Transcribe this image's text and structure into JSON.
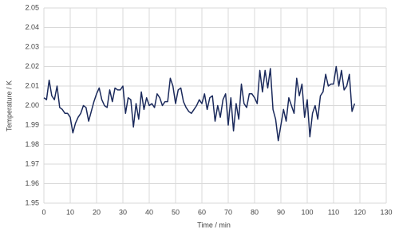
{
  "chart_data": {
    "type": "line",
    "x_label": "Time / min",
    "y_label": "Temperature / K",
    "xlim": [
      0,
      130
    ],
    "xticks": [
      0,
      10,
      20,
      30,
      40,
      50,
      60,
      70,
      80,
      90,
      100,
      110,
      120,
      130
    ],
    "ylim": [
      1.95,
      2.05
    ],
    "yticks": [
      1.95,
      1.96,
      1.97,
      1.98,
      1.99,
      {
        "value": 2,
        "label": "2.00"
      },
      2.01,
      2.02,
      2.03,
      2.04,
      2.05
    ],
    "grid": true,
    "x": [
      0,
      1,
      2,
      3,
      4,
      5,
      6,
      7,
      8,
      9,
      10,
      11,
      12,
      13,
      14,
      15,
      16,
      17,
      18,
      19,
      20,
      21,
      22,
      23,
      24,
      25,
      26,
      27,
      28,
      29,
      30,
      31,
      32,
      33,
      34,
      35,
      36,
      37,
      38,
      39,
      40,
      41,
      42,
      43,
      44,
      45,
      46,
      47,
      48,
      49,
      50,
      51,
      52,
      53,
      54,
      55,
      56,
      57,
      58,
      59,
      60,
      61,
      62,
      63,
      64,
      65,
      66,
      67,
      68,
      69,
      70,
      71,
      72,
      73,
      74,
      75,
      76,
      77,
      78,
      79,
      80,
      81,
      82,
      83,
      84,
      85,
      86,
      87,
      88,
      89,
      90,
      91,
      92,
      93,
      94,
      95,
      96,
      97,
      98,
      99,
      100,
      101,
      102,
      103,
      104,
      105,
      106,
      107,
      108,
      109,
      110,
      111,
      112,
      113,
      114,
      115,
      116,
      117,
      118
    ],
    "series": [
      {
        "color": "#1b2a5c",
        "values": [
          2.004,
          2.003,
          2.013,
          2.005,
          2.003,
          2.01,
          1.999,
          1.998,
          1.996,
          1.996,
          1.994,
          1.986,
          1.991,
          1.994,
          1.996,
          2.0,
          1.999,
          1.992,
          1.997,
          2.002,
          2.006,
          2.009,
          2.003,
          2.0,
          1.999,
          2.008,
          2.002,
          2.009,
          2.008,
          2.008,
          2.01,
          1.996,
          2.004,
          2.003,
          1.989,
          2.001,
          1.993,
          2.007,
          1.998,
          2.004,
          2.0,
          2.001,
          1.999,
          2.006,
          2.004,
          2.0,
          2.002,
          2.002,
          2.014,
          2.01,
          2.001,
          2.008,
          2.009,
          2.002,
          1.999,
          1.997,
          1.996,
          1.998,
          2.0,
          2.003,
          2.001,
          2.006,
          1.998,
          2.004,
          2.005,
          1.992,
          2.0,
          1.994,
          2.003,
          2.006,
          1.99,
          2.004,
          1.987,
          2.001,
          1.993,
          2.011,
          2.001,
          1.999,
          2.006,
          2.006,
          2.004,
          2.001,
          2.018,
          2.007,
          2.018,
          2.009,
          2.019,
          1.998,
          1.993,
          1.982,
          1.99,
          1.998,
          1.992,
          2.004,
          2.0,
          1.996,
          2.014,
          2.005,
          2.011,
          1.994,
          2.003,
          1.984,
          1.996,
          2.0,
          1.993,
          2.005,
          2.007,
          2.016,
          2.01,
          2.011,
          2.011,
          2.02,
          2.01,
          2.018,
          2.008,
          2.01,
          2.016,
          1.997,
          2.001
        ]
      }
    ]
  }
}
